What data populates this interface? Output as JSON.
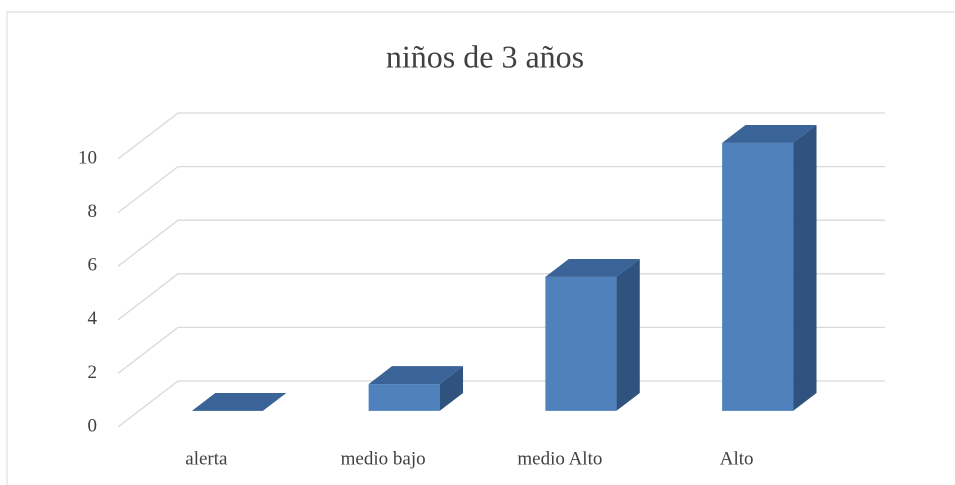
{
  "chart_data": {
    "type": "bar3d",
    "title": "niños de  3 años",
    "categories": [
      "alerta",
      "medio bajo",
      "medio Alto",
      "Alto"
    ],
    "values": [
      0,
      1,
      5,
      10
    ],
    "color": "#4f81bd",
    "ylim": [
      0,
      10
    ],
    "yticks": [
      0,
      2,
      4,
      6,
      8,
      10
    ],
    "grid": true
  }
}
